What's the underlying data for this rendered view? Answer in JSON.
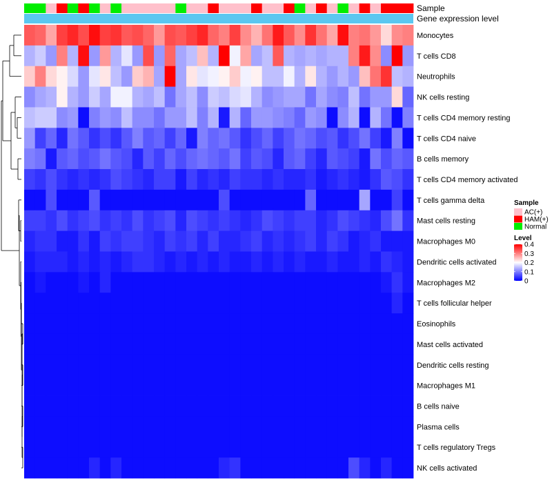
{
  "chart_data": {
    "type": "heatmap",
    "annotation_labels": {
      "sample": "Sample",
      "gene": "Gene expression level"
    },
    "sample_groups": [
      "Normal",
      "Normal",
      "AC(+)",
      "HAM(+)",
      "Normal",
      "HAM(+)",
      "Normal",
      "AC(+)",
      "Normal",
      "AC(+)",
      "AC(+)",
      "AC(+)",
      "AC(+)",
      "AC(+)",
      "Normal",
      "AC(+)",
      "AC(+)",
      "HAM(+)",
      "AC(+)",
      "AC(+)",
      "AC(+)",
      "HAM(+)",
      "AC(+)",
      "AC(+)",
      "HAM(+)",
      "Normal",
      "AC(+)",
      "HAM(+)",
      "AC(+)",
      "Normal",
      "AC(+)",
      "HAM(+)",
      "AC(+)",
      "HAM(+)",
      "HAM(+)",
      "HAM(+)"
    ],
    "sample_colors": {
      "AC(+)": "#ffc0cb",
      "HAM(+)": "#ff0000",
      "Normal": "#00ee00"
    },
    "gene_level_color": "#5bc7f0",
    "rows": [
      "Monocytes",
      "T cells CD8",
      "Neutrophils",
      "NK cells resting",
      "T cells CD4 memory resting",
      "T cells CD4 naive",
      "B cells memory",
      "T cells CD4 memory activated",
      "T cells gamma delta",
      "Mast cells resting",
      "Macrophages M0",
      "Dendritic cells activated",
      "Macrophages M2",
      "T cells follicular helper",
      "Eosinophils",
      "Mast cells activated",
      "Dendritic cells resting",
      "Macrophages M1",
      "B cells naive",
      "Plasma cells",
      "T cells regulatory  Tregs",
      "NK cells activated"
    ],
    "values": [
      [
        0.33,
        0.32,
        0.27,
        0.35,
        0.37,
        0.34,
        0.39,
        0.35,
        0.36,
        0.33,
        0.34,
        0.32,
        0.28,
        0.34,
        0.33,
        0.35,
        0.37,
        0.32,
        0.3,
        0.35,
        0.29,
        0.26,
        0.31,
        0.38,
        0.33,
        0.29,
        0.36,
        0.31,
        0.27,
        0.39,
        0.3,
        0.31,
        0.28,
        0.23,
        0.29,
        0.3
      ],
      [
        0.14,
        0.16,
        0.12,
        0.3,
        0.14,
        0.39,
        0.12,
        0.28,
        0.14,
        0.18,
        0.12,
        0.34,
        0.12,
        0.32,
        0.13,
        0.15,
        0.25,
        0.14,
        0.4,
        0.19,
        0.27,
        0.13,
        0.15,
        0.33,
        0.14,
        0.13,
        0.14,
        0.13,
        0.14,
        0.14,
        0.3,
        0.38,
        0.29,
        0.11,
        0.4,
        0.12
      ],
      [
        0.24,
        0.3,
        0.23,
        0.21,
        0.17,
        0.12,
        0.18,
        0.22,
        0.15,
        0.12,
        0.24,
        0.26,
        0.13,
        0.4,
        0.13,
        0.22,
        0.18,
        0.19,
        0.21,
        0.24,
        0.19,
        0.21,
        0.15,
        0.15,
        0.19,
        0.14,
        0.22,
        0.14,
        0.12,
        0.14,
        0.12,
        0.25,
        0.31,
        0.36,
        0.15,
        0.14
      ],
      [
        0.11,
        0.13,
        0.14,
        0.21,
        0.14,
        0.12,
        0.16,
        0.13,
        0.19,
        0.19,
        0.14,
        0.13,
        0.15,
        0.09,
        0.13,
        0.15,
        0.11,
        0.16,
        0.15,
        0.17,
        0.18,
        0.14,
        0.11,
        0.12,
        0.13,
        0.13,
        0.09,
        0.13,
        0.11,
        0.1,
        0.15,
        0.09,
        0.12,
        0.12,
        0.23,
        0.08
      ],
      [
        0.15,
        0.16,
        0.16,
        0.11,
        0.12,
        0.01,
        0.1,
        0.12,
        0.11,
        0.15,
        0.11,
        0.11,
        0.09,
        0.12,
        0.12,
        0.15,
        0.1,
        0.14,
        0.02,
        0.14,
        0.08,
        0.12,
        0.12,
        0.11,
        0.1,
        0.08,
        0.12,
        0.11,
        0.01,
        0.11,
        0.14,
        0.01,
        0.14,
        0.09,
        0.01,
        0.1
      ],
      [
        0.12,
        0.05,
        0.08,
        0.03,
        0.09,
        0.07,
        0.04,
        0.06,
        0.04,
        0.07,
        0.1,
        0.07,
        0.08,
        0.05,
        0.08,
        0.02,
        0.1,
        0.08,
        0.09,
        0.07,
        0.04,
        0.06,
        0.08,
        0.05,
        0.07,
        0.09,
        0.08,
        0.06,
        0.07,
        0.04,
        0.06,
        0.09,
        0.05,
        0.02,
        0.1,
        0.01
      ],
      [
        0.1,
        0.09,
        0.02,
        0.07,
        0.08,
        0.06,
        0.07,
        0.09,
        0.07,
        0.06,
        0.03,
        0.07,
        0.05,
        0.08,
        0.06,
        0.08,
        0.09,
        0.08,
        0.07,
        0.09,
        0.05,
        0.07,
        0.06,
        0.03,
        0.07,
        0.08,
        0.05,
        0.03,
        0.07,
        0.06,
        0.05,
        0.02,
        0.09,
        0.06,
        0.08,
        0.07
      ],
      [
        0.05,
        0.04,
        0.06,
        0.04,
        0.03,
        0.04,
        0.03,
        0.04,
        0.06,
        0.05,
        0.04,
        0.03,
        0.05,
        0.05,
        0.02,
        0.05,
        0.03,
        0.04,
        0.03,
        0.05,
        0.04,
        0.04,
        0.03,
        0.04,
        0.03,
        0.03,
        0.04,
        0.02,
        0.03,
        0.04,
        0.03,
        0.02,
        0.04,
        0.07,
        0.06,
        0.04
      ],
      [
        0.01,
        0.01,
        0.06,
        0.01,
        0.01,
        0.01,
        0.07,
        0.01,
        0.01,
        0.01,
        0.01,
        0.01,
        0.01,
        0.01,
        0.01,
        0.01,
        0.01,
        0.01,
        0.06,
        0.01,
        0.01,
        0.01,
        0.01,
        0.01,
        0.01,
        0.01,
        0.08,
        0.01,
        0.01,
        0.01,
        0.01,
        0.13,
        0.01,
        0.01,
        0.05,
        0.01
      ],
      [
        0.05,
        0.05,
        0.04,
        0.06,
        0.04,
        0.05,
        0.06,
        0.04,
        0.05,
        0.04,
        0.06,
        0.04,
        0.05,
        0.06,
        0.03,
        0.06,
        0.05,
        0.04,
        0.05,
        0.04,
        0.03,
        0.04,
        0.06,
        0.05,
        0.04,
        0.05,
        0.05,
        0.03,
        0.04,
        0.06,
        0.05,
        0.04,
        0.03,
        0.06,
        0.09,
        0.04
      ],
      [
        0.03,
        0.04,
        0.04,
        0.02,
        0.02,
        0.04,
        0.02,
        0.05,
        0.04,
        0.05,
        0.05,
        0.04,
        0.03,
        0.05,
        0.04,
        0.05,
        0.03,
        0.05,
        0.03,
        0.03,
        0.04,
        0.05,
        0.03,
        0.04,
        0.03,
        0.04,
        0.05,
        0.03,
        0.05,
        0.04,
        0.02,
        0.03,
        0.04,
        0.02,
        0.02,
        0.02
      ],
      [
        0.02,
        0.03,
        0.03,
        0.03,
        0.02,
        0.03,
        0.02,
        0.03,
        0.02,
        0.03,
        0.04,
        0.04,
        0.03,
        0.02,
        0.03,
        0.02,
        0.03,
        0.02,
        0.03,
        0.02,
        0.02,
        0.03,
        0.02,
        0.03,
        0.02,
        0.03,
        0.02,
        0.02,
        0.03,
        0.02,
        0.02,
        0.03,
        0.02,
        0.04,
        0.03,
        0.02
      ],
      [
        0.01,
        0.02,
        0.01,
        0.01,
        0.01,
        0.02,
        0.01,
        0.03,
        0.01,
        0.01,
        0.01,
        0.01,
        0.01,
        0.01,
        0.01,
        0.01,
        0.01,
        0.01,
        0.01,
        0.01,
        0.01,
        0.01,
        0.01,
        0.01,
        0.01,
        0.01,
        0.01,
        0.01,
        0.01,
        0.01,
        0.01,
        0.01,
        0.01,
        0.02,
        0.04,
        0.02
      ],
      [
        0.01,
        0.01,
        0.01,
        0.01,
        0.01,
        0.01,
        0.01,
        0.01,
        0.01,
        0.01,
        0.01,
        0.01,
        0.01,
        0.01,
        0.01,
        0.01,
        0.01,
        0.01,
        0.01,
        0.01,
        0.01,
        0.01,
        0.01,
        0.01,
        0.01,
        0.01,
        0.01,
        0.01,
        0.01,
        0.01,
        0.01,
        0.01,
        0.01,
        0.01,
        0.03,
        0.01
      ],
      [
        0.01,
        0.01,
        0.01,
        0.01,
        0.01,
        0.01,
        0.01,
        0.01,
        0.01,
        0.01,
        0.01,
        0.01,
        0.01,
        0.01,
        0.01,
        0.01,
        0.01,
        0.01,
        0.01,
        0.01,
        0.01,
        0.01,
        0.01,
        0.01,
        0.01,
        0.01,
        0.01,
        0.01,
        0.01,
        0.01,
        0.01,
        0.01,
        0.01,
        0.01,
        0.01,
        0.01
      ],
      [
        0.01,
        0.01,
        0.01,
        0.01,
        0.01,
        0.01,
        0.01,
        0.01,
        0.01,
        0.01,
        0.01,
        0.01,
        0.01,
        0.01,
        0.01,
        0.01,
        0.01,
        0.01,
        0.01,
        0.01,
        0.01,
        0.01,
        0.01,
        0.01,
        0.01,
        0.01,
        0.01,
        0.01,
        0.01,
        0.01,
        0.01,
        0.01,
        0.01,
        0.01,
        0.01,
        0.01
      ],
      [
        0.01,
        0.01,
        0.01,
        0.01,
        0.01,
        0.01,
        0.01,
        0.01,
        0.01,
        0.01,
        0.01,
        0.01,
        0.01,
        0.01,
        0.01,
        0.01,
        0.01,
        0.01,
        0.01,
        0.01,
        0.01,
        0.01,
        0.01,
        0.01,
        0.01,
        0.01,
        0.01,
        0.01,
        0.01,
        0.01,
        0.01,
        0.01,
        0.01,
        0.01,
        0.01,
        0.01
      ],
      [
        0.01,
        0.01,
        0.01,
        0.01,
        0.01,
        0.01,
        0.01,
        0.01,
        0.01,
        0.01,
        0.01,
        0.01,
        0.01,
        0.01,
        0.01,
        0.01,
        0.01,
        0.01,
        0.01,
        0.01,
        0.01,
        0.01,
        0.01,
        0.01,
        0.01,
        0.01,
        0.01,
        0.01,
        0.01,
        0.01,
        0.01,
        0.01,
        0.01,
        0.01,
        0.01,
        0.01
      ],
      [
        0.01,
        0.01,
        0.01,
        0.01,
        0.01,
        0.01,
        0.01,
        0.01,
        0.01,
        0.01,
        0.01,
        0.01,
        0.01,
        0.01,
        0.01,
        0.01,
        0.01,
        0.01,
        0.01,
        0.01,
        0.01,
        0.01,
        0.01,
        0.01,
        0.01,
        0.01,
        0.01,
        0.01,
        0.01,
        0.01,
        0.01,
        0.01,
        0.01,
        0.01,
        0.01,
        0.01
      ],
      [
        0.01,
        0.01,
        0.01,
        0.01,
        0.01,
        0.01,
        0.01,
        0.01,
        0.01,
        0.01,
        0.01,
        0.01,
        0.01,
        0.01,
        0.01,
        0.01,
        0.01,
        0.01,
        0.01,
        0.01,
        0.01,
        0.01,
        0.01,
        0.01,
        0.01,
        0.01,
        0.01,
        0.01,
        0.01,
        0.01,
        0.01,
        0.01,
        0.01,
        0.01,
        0.01,
        0.01
      ],
      [
        0.01,
        0.01,
        0.01,
        0.01,
        0.01,
        0.01,
        0.01,
        0.01,
        0.01,
        0.01,
        0.01,
        0.01,
        0.01,
        0.01,
        0.01,
        0.01,
        0.01,
        0.01,
        0.01,
        0.01,
        0.01,
        0.01,
        0.01,
        0.01,
        0.01,
        0.01,
        0.01,
        0.01,
        0.01,
        0.01,
        0.01,
        0.01,
        0.01,
        0.01,
        0.01,
        0.01
      ],
      [
        0.01,
        0.01,
        0.01,
        0.01,
        0.01,
        0.01,
        0.03,
        0.01,
        0.03,
        0.01,
        0.01,
        0.01,
        0.01,
        0.01,
        0.01,
        0.01,
        0.01,
        0.01,
        0.03,
        0.04,
        0.01,
        0.01,
        0.01,
        0.01,
        0.01,
        0.01,
        0.01,
        0.01,
        0.01,
        0.01,
        0.06,
        0.03,
        0.01,
        0.03,
        0.01,
        0.01
      ]
    ],
    "legend": {
      "sample_title": "Sample",
      "sample_entries": [
        "AC(+)",
        "HAM(+)",
        "Normal"
      ],
      "level_title": "Level",
      "level_ticks": [
        "0.4",
        "0.3",
        "0.2",
        "0.1",
        "0"
      ],
      "level_range": [
        0,
        0.4
      ],
      "color_low": "#0000ff",
      "color_mid": "#ffffff",
      "color_high": "#ff0000"
    }
  }
}
